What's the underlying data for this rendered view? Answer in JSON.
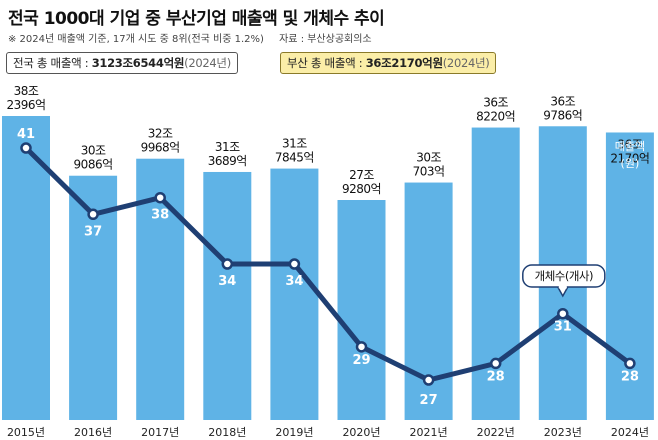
{
  "header": {
    "title": "전국 1000대 기업 중 부산기업 매출액 및 개체수 추이",
    "note": "※ 2024년 매출액 기준, 17개 시도 중 8위(전국 비중 1.2%)",
    "source": "자료 : 부산상공회의소"
  },
  "summary": {
    "national_label": "전국 총 매출액 : ",
    "national_value": "3123조6544억원",
    "national_year": "(2024년)",
    "busan_label": "부산 총 매출액 : ",
    "busan_value": "36조2170억원",
    "busan_year": "(2024년)"
  },
  "colors": {
    "bar": "#5fb3e6",
    "line": "#1f3f73",
    "bar_label_inside": "#ffffff",
    "last_bar_label": "#d8eefb"
  },
  "chart_data": {
    "type": "bar",
    "categories": [
      "2015년",
      "2016년",
      "2017년",
      "2018년",
      "2019년",
      "2020년",
      "2021년",
      "2022년",
      "2023년",
      "2024년"
    ],
    "series": [
      {
        "name": "매출액",
        "unit_label": "(원)",
        "values": [
          38.2396,
          30.9086,
          32.9968,
          31.3689,
          31.7845,
          27.928,
          30.0703,
          36.822,
          36.9786,
          36.217
        ],
        "labels": [
          [
            "38조",
            "2396억"
          ],
          [
            "30조",
            "9086억"
          ],
          [
            "32조",
            "9968억"
          ],
          [
            "31조",
            "3689억"
          ],
          [
            "31조",
            "7845억"
          ],
          [
            "27조",
            "9280억"
          ],
          [
            "30조",
            "703억"
          ],
          [
            "36조",
            "8220억"
          ],
          [
            "36조",
            "9786억"
          ],
          [
            "36조",
            "2170억"
          ]
        ]
      },
      {
        "name": "개체수(개사)",
        "type": "line",
        "values": [
          41,
          37,
          38,
          34,
          34,
          29,
          27,
          28,
          31,
          28
        ]
      }
    ],
    "ylim": [
      0,
      40
    ]
  }
}
